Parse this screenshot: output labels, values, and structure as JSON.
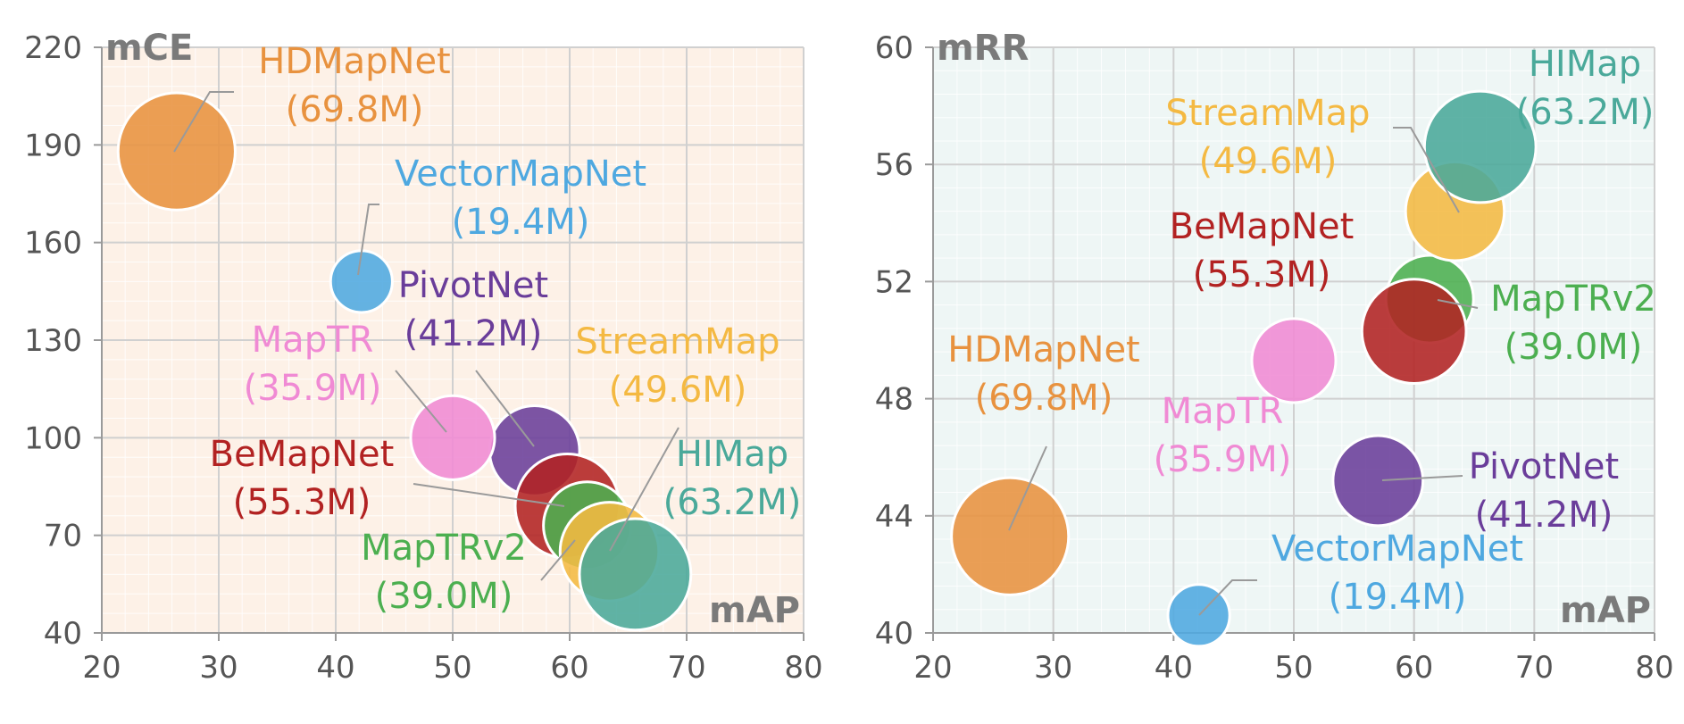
{
  "chart_data": [
    {
      "type": "scatter",
      "subtype": "bubble",
      "x_corner_label": "mAP",
      "y_corner_label": "mCE",
      "xlim": [
        20,
        80
      ],
      "ylim": [
        40,
        220
      ],
      "xticks": [
        20,
        30,
        40,
        50,
        60,
        70,
        80
      ],
      "yticks": [
        40,
        70,
        100,
        130,
        160,
        190,
        220
      ],
      "grid": true,
      "background": "#fdf1e7",
      "points": [
        {
          "name": "HDMapNet",
          "params": "(69.8M)",
          "params_m": 69.8,
          "x": 26.4,
          "y": 188,
          "color": "#e8923f"
        },
        {
          "name": "VectorMapNet",
          "params": "(19.4M)",
          "params_m": 19.4,
          "x": 42.2,
          "y": 148,
          "color": "#4ea8e0"
        },
        {
          "name": "PivotNet",
          "params": "(41.2M)",
          "params_m": 41.2,
          "x": 57.0,
          "y": 96,
          "color": "#6a3d9a"
        },
        {
          "name": "MapTR",
          "params": "(35.9M)",
          "params_m": 35.9,
          "x": 50.0,
          "y": 100,
          "color": "#f08ad4"
        },
        {
          "name": "BeMapNet",
          "params": "(55.3M)",
          "params_m": 55.3,
          "x": 59.8,
          "y": 79,
          "color": "#b22222"
        },
        {
          "name": "MapTRv2",
          "params": "(39.0M)",
          "params_m": 39.0,
          "x": 61.5,
          "y": 73,
          "color": "#4caf50"
        },
        {
          "name": "StreamMap",
          "params": "(49.6M)",
          "params_m": 49.6,
          "x": 63.4,
          "y": 65,
          "color": "#f4b942"
        },
        {
          "name": "HIMap",
          "params": "(63.2M)",
          "params_m": 63.2,
          "x": 65.6,
          "y": 58,
          "color": "#4aa99a"
        }
      ]
    },
    {
      "type": "scatter",
      "subtype": "bubble",
      "x_corner_label": "mAP",
      "y_corner_label": "mRR",
      "xlim": [
        20,
        80
      ],
      "ylim": [
        40,
        60
      ],
      "xticks": [
        20,
        30,
        40,
        50,
        60,
        70,
        80
      ],
      "yticks": [
        40,
        44,
        48,
        52,
        56,
        60
      ],
      "grid": true,
      "background": "#eef6f5",
      "points": [
        {
          "name": "HDMapNet",
          "params": "(69.8M)",
          "params_m": 69.8,
          "x": 26.4,
          "y": 43.3,
          "color": "#e8923f"
        },
        {
          "name": "VectorMapNet",
          "params": "(19.4M)",
          "params_m": 19.4,
          "x": 42.1,
          "y": 40.6,
          "color": "#4ea8e0"
        },
        {
          "name": "PivotNet",
          "params": "(41.2M)",
          "params_m": 41.2,
          "x": 57.0,
          "y": 45.2,
          "color": "#6a3d9a"
        },
        {
          "name": "MapTR",
          "params": "(35.9M)",
          "params_m": 35.9,
          "x": 50.0,
          "y": 49.3,
          "color": "#f08ad4"
        },
        {
          "name": "MapTRv2",
          "params": "(39.0M)",
          "params_m": 39.0,
          "x": 61.3,
          "y": 51.4,
          "color": "#4caf50"
        },
        {
          "name": "BeMapNet",
          "params": "(55.3M)",
          "params_m": 55.3,
          "x": 60.0,
          "y": 50.3,
          "color": "#b22222"
        },
        {
          "name": "StreamMap",
          "params": "(49.6M)",
          "params_m": 49.6,
          "x": 63.4,
          "y": 54.4,
          "color": "#f4b942"
        },
        {
          "name": "HIMap",
          "params": "(63.2M)",
          "params_m": 63.2,
          "x": 65.5,
          "y": 56.6,
          "color": "#4aa99a"
        }
      ]
    }
  ]
}
